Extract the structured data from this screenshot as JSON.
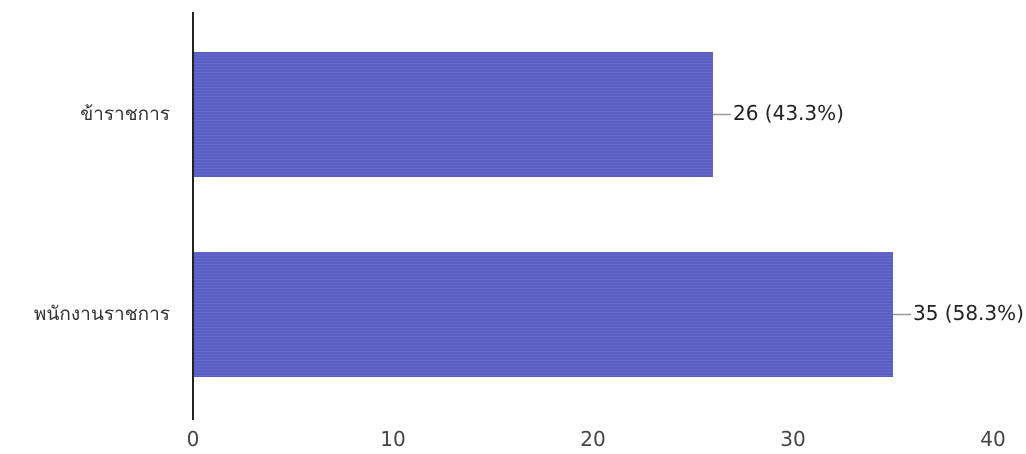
{
  "chart_data": {
    "type": "bar",
    "orientation": "horizontal",
    "categories": [
      "ข้าราชการ",
      "พนักงานราชการ"
    ],
    "values": [
      26,
      35
    ],
    "data_labels": [
      "26 (43.3%)",
      "35 (58.3%)"
    ],
    "xlim": [
      0,
      40
    ],
    "x_ticks": [
      "0",
      "10",
      "20",
      "30",
      "40"
    ],
    "grid": false,
    "bar_color": "#5a5fc0",
    "title": "",
    "xlabel": "",
    "ylabel": ""
  }
}
